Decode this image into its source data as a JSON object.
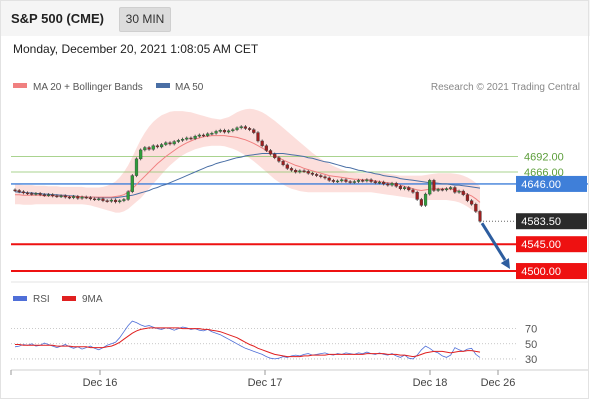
{
  "header": {
    "title": "S&P 500 (CME)",
    "timeframe": "30 MIN",
    "datetime": "Monday, December 20, 2021 1:08:05 AM CET"
  },
  "legend": {
    "ma20_label": "MA 20 + Bollinger Bands",
    "ma50_label": "MA 50",
    "copyright": "Research © 2021 Trading Central",
    "rsi_label": "RSI",
    "rsi_ma_label": "9MA"
  },
  "colors": {
    "ma20": "#f08080",
    "bollinger_fill": "#fbd9d6",
    "ma50": "#4a6fa5",
    "resistance": "#8cc56a",
    "pivot": "#3f7fd9",
    "support": "#ee1111",
    "arrow": "#2d5d9f",
    "rsi": "#4f6fd8",
    "rsi_ma": "#e02020"
  },
  "chart_data": [
    {
      "type": "line",
      "subtype": "candlestick",
      "title": "",
      "x_ticks": [
        "Dec 16",
        "Dec 17",
        "Dec 18",
        "Dec 26"
      ],
      "price_levels": [
        {
          "value": 4692.0,
          "label": "4692.00",
          "role": "resistance"
        },
        {
          "value": 4666.0,
          "label": "4666.00",
          "role": "resistance"
        },
        {
          "value": 4646.0,
          "label": "4646.00",
          "role": "pivot"
        },
        {
          "value": 4583.5,
          "label": "4583.50",
          "role": "last"
        },
        {
          "value": 4545.0,
          "label": "4545.00",
          "role": "support"
        },
        {
          "value": 4500.0,
          "label": "4500.00",
          "role": "support"
        }
      ],
      "forecast_arrow": {
        "from": 4583.5,
        "to": 4500.0
      },
      "close_series": [
        4635,
        4633,
        4631,
        4630,
        4629,
        4630,
        4628,
        4627,
        4628,
        4626,
        4625,
        4626,
        4624,
        4623,
        4625,
        4622,
        4624,
        4623,
        4621,
        4620,
        4621,
        4618,
        4617,
        4619,
        4616,
        4618,
        4620,
        4633,
        4660,
        4688,
        4703,
        4707,
        4704,
        4710,
        4708,
        4712,
        4715,
        4713,
        4717,
        4719,
        4721,
        4723,
        4722,
        4726,
        4728,
        4727,
        4730,
        4731,
        4734,
        4736,
        4733,
        4735,
        4737,
        4740,
        4742,
        4739,
        4737,
        4732,
        4718,
        4710,
        4702,
        4696,
        4690,
        4684,
        4678,
        4672,
        4669,
        4666,
        4668,
        4667,
        4664,
        4662,
        4660,
        4658,
        4656,
        4652,
        4650,
        4651,
        4653,
        4650,
        4649,
        4650,
        4652,
        4651,
        4653,
        4650,
        4648,
        4649,
        4646,
        4644,
        4647,
        4642,
        4638,
        4640,
        4636,
        4632,
        4620,
        4610,
        4629,
        4652,
        4635,
        4637,
        4636,
        4638,
        4640,
        4632,
        4634,
        4628,
        4618,
        4612,
        4600,
        4583.5
      ],
      "ma20": [
        4628,
        4628,
        4627,
        4627,
        4627,
        4627,
        4627,
        4626,
        4626,
        4626,
        4626,
        4626,
        4626,
        4625,
        4625,
        4625,
        4625,
        4624,
        4624,
        4624,
        4624,
        4624,
        4624,
        4624,
        4625,
        4626,
        4628,
        4632,
        4638,
        4645,
        4652,
        4659,
        4666,
        4673,
        4680,
        4686,
        4692,
        4697,
        4702,
        4707,
        4711,
        4715,
        4718,
        4721,
        4723,
        4725,
        4726,
        4727,
        4727,
        4727,
        4727,
        4726,
        4725,
        4724,
        4722,
        4720,
        4717,
        4714,
        4710,
        4706,
        4702,
        4698,
        4694,
        4690,
        4686,
        4683,
        4680,
        4677,
        4675,
        4672,
        4670,
        4668,
        4666,
        4664,
        4662,
        4660,
        4659,
        4658,
        4657,
        4656,
        4655,
        4654,
        4654,
        4653,
        4653,
        4652,
        4651,
        4650,
        4649,
        4648,
        4647,
        4646,
        4644,
        4642,
        4640,
        4638,
        4636,
        4635,
        4636,
        4637,
        4638,
        4638,
        4638,
        4638,
        4637,
        4636,
        4634,
        4632,
        4629,
        4626,
        4621,
        4615
      ],
      "bollinger_upper": [
        4645,
        4645,
        4644,
        4644,
        4644,
        4643,
        4643,
        4643,
        4642,
        4642,
        4642,
        4641,
        4641,
        4641,
        4641,
        4641,
        4641,
        4640,
        4640,
        4640,
        4640,
        4641,
        4643,
        4646,
        4650,
        4657,
        4666,
        4677,
        4691,
        4706,
        4720,
        4732,
        4742,
        4750,
        4756,
        4761,
        4764,
        4767,
        4768,
        4768,
        4768,
        4767,
        4766,
        4764,
        4762,
        4760,
        4758,
        4756,
        4755,
        4754,
        4756,
        4758,
        4762,
        4766,
        4769,
        4771,
        4772,
        4771,
        4769,
        4766,
        4762,
        4757,
        4752,
        4746,
        4740,
        4734,
        4728,
        4722,
        4716,
        4710,
        4704,
        4698,
        4693,
        4688,
        4684,
        4680,
        4676,
        4673,
        4670,
        4668,
        4666,
        4665,
        4664,
        4664,
        4664,
        4664,
        4664,
        4664,
        4664,
        4663,
        4662,
        4661,
        4660,
        4660,
        4660,
        4660,
        4660,
        4660,
        4661,
        4662,
        4663,
        4664,
        4664,
        4664,
        4664,
        4663,
        4662,
        4660,
        4657,
        4653,
        4648,
        4642
      ],
      "bollinger_lower": [
        4612,
        4612,
        4611,
        4611,
        4611,
        4612,
        4612,
        4612,
        4612,
        4612,
        4612,
        4612,
        4612,
        4612,
        4612,
        4612,
        4612,
        4611,
        4610,
        4608,
        4606,
        4604,
        4602,
        4600,
        4598,
        4598,
        4600,
        4604,
        4610,
        4616,
        4622,
        4630,
        4638,
        4646,
        4654,
        4662,
        4670,
        4677,
        4683,
        4689,
        4694,
        4698,
        4701,
        4704,
        4706,
        4708,
        4709,
        4710,
        4710,
        4710,
        4709,
        4707,
        4705,
        4702,
        4698,
        4694,
        4689,
        4684,
        4678,
        4672,
        4666,
        4660,
        4654,
        4649,
        4645,
        4641,
        4638,
        4636,
        4634,
        4633,
        4632,
        4632,
        4632,
        4632,
        4632,
        4632,
        4632,
        4632,
        4632,
        4632,
        4632,
        4632,
        4632,
        4632,
        4632,
        4632,
        4631,
        4630,
        4629,
        4628,
        4627,
        4626,
        4625,
        4624,
        4623,
        4622,
        4621,
        4620,
        4619,
        4619,
        4619,
        4619,
        4619,
        4619,
        4618,
        4617,
        4615,
        4612,
        4608,
        4603,
        4598,
        4593
      ],
      "ma50": [
        4633,
        4632,
        4632,
        4631,
        4631,
        4630,
        4630,
        4629,
        4629,
        4628,
        4628,
        4627,
        4627,
        4626,
        4626,
        4625,
        4625,
        4624,
        4624,
        4624,
        4623,
        4623,
        4623,
        4623,
        4623,
        4624,
        4625,
        4626,
        4627,
        4629,
        4631,
        4633,
        4635,
        4638,
        4640,
        4643,
        4645,
        4648,
        4651,
        4654,
        4657,
        4660,
        4663,
        4666,
        4669,
        4672,
        4675,
        4677,
        4680,
        4682,
        4684,
        4686,
        4688,
        4690,
        4691,
        4693,
        4694,
        4695,
        4696,
        4697,
        4697,
        4697,
        4697,
        4697,
        4697,
        4696,
        4695,
        4694,
        4693,
        4692,
        4690,
        4689,
        4687,
        4685,
        4683,
        4682,
        4680,
        4678,
        4676,
        4674,
        4673,
        4671,
        4669,
        4668,
        4666,
        4665,
        4663,
        4662,
        4660,
        4659,
        4658,
        4657,
        4655,
        4654,
        4653,
        4652,
        4651,
        4650,
        4649,
        4648,
        4648,
        4647,
        4646,
        4646,
        4645,
        4644,
        4644,
        4643,
        4642,
        4641,
        4640,
        4639
      ],
      "ylim": [
        4485,
        4790
      ]
    },
    {
      "type": "line",
      "series": [
        {
          "name": "RSI",
          "values": [
            46,
            47,
            49,
            48,
            50,
            47,
            48,
            51,
            49,
            47,
            45,
            47,
            49,
            46,
            44,
            46,
            43,
            45,
            47,
            44,
            42,
            45,
            48,
            50,
            52,
            58,
            66,
            74,
            80,
            78,
            75,
            73,
            74,
            72,
            70,
            69,
            71,
            70,
            68,
            70,
            72,
            71,
            69,
            70,
            68,
            67,
            69,
            66,
            64,
            62,
            59,
            56,
            53,
            50,
            47,
            44,
            42,
            40,
            38,
            36,
            33,
            31,
            30,
            31,
            33,
            32,
            34,
            35,
            34,
            36,
            37,
            35,
            36,
            37,
            38,
            36,
            35,
            37,
            36,
            38,
            37,
            36,
            38,
            37,
            39,
            37,
            36,
            38,
            36,
            35,
            37,
            34,
            32,
            35,
            31,
            30,
            35,
            42,
            47,
            44,
            40,
            38,
            34,
            32,
            35,
            45,
            42,
            40,
            43,
            44,
            36,
            32
          ]
        },
        {
          "name": "9MA",
          "values": [
            49,
            49,
            48,
            48,
            48,
            48,
            48,
            48,
            48,
            48,
            47,
            47,
            47,
            47,
            46,
            46,
            46,
            46,
            45,
            45,
            45,
            45,
            46,
            47,
            49,
            52,
            56,
            60,
            64,
            67,
            69,
            70,
            71,
            71,
            71,
            71,
            71,
            71,
            71,
            71,
            70,
            70,
            70,
            70,
            70,
            69,
            69,
            68,
            67,
            66,
            64,
            62,
            60,
            58,
            55,
            52,
            49,
            47,
            44,
            42,
            40,
            38,
            36,
            35,
            34,
            33,
            33,
            33,
            33,
            34,
            34,
            35,
            35,
            35,
            35,
            36,
            36,
            36,
            36,
            36,
            36,
            36,
            36,
            36,
            37,
            37,
            37,
            37,
            37,
            36,
            36,
            36,
            35,
            35,
            34,
            33,
            34,
            36,
            38,
            39,
            40,
            40,
            40,
            39,
            38,
            39,
            40,
            40,
            41,
            41,
            40,
            39
          ]
        }
      ],
      "y_ticks": [
        70,
        50,
        30
      ],
      "ylim": [
        18,
        92
      ]
    }
  ]
}
